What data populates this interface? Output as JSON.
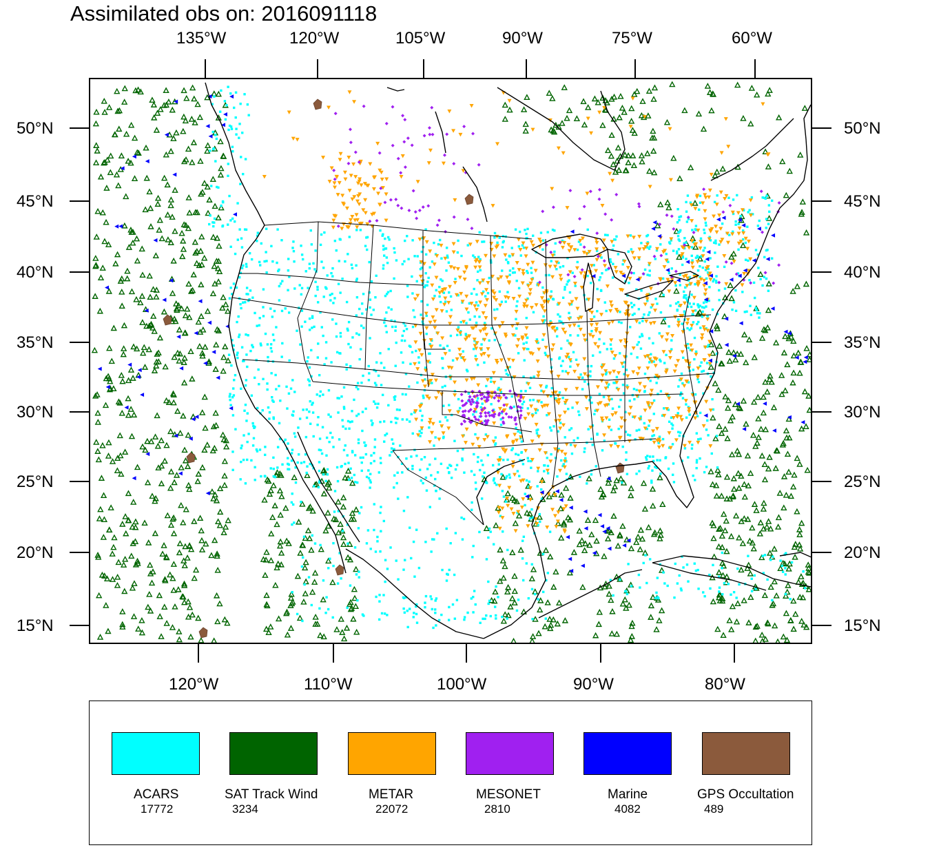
{
  "title": "Assimilated obs on: 2016091118",
  "top_lon_labels": [
    "135°W",
    "120°W",
    "105°W",
    "90°W",
    "75°W",
    "60°W"
  ],
  "bottom_lon_labels": [
    "120°W",
    "110°W",
    "100°W",
    "90°W",
    "80°W"
  ],
  "lat_labels": [
    "50°N",
    "45°N",
    "40°N",
    "35°N",
    "30°N",
    "25°N",
    "20°N",
    "15°N"
  ],
  "legend": [
    {
      "label": "ACARS",
      "count": "17772",
      "color": "#00ffff"
    },
    {
      "label": "SAT Track Wind",
      "count": "3234",
      "color": "#006400"
    },
    {
      "label": "METAR",
      "count": "22072",
      "color": "#ffa500"
    },
    {
      "label": "MESONET",
      "count": "2810",
      "color": "#a020f0"
    },
    {
      "label": "Marine",
      "count": "4082",
      "color": "#0000ff"
    },
    {
      "label": "GPS Occultation",
      "count": "489",
      "color": "#8b5a3c"
    }
  ]
}
